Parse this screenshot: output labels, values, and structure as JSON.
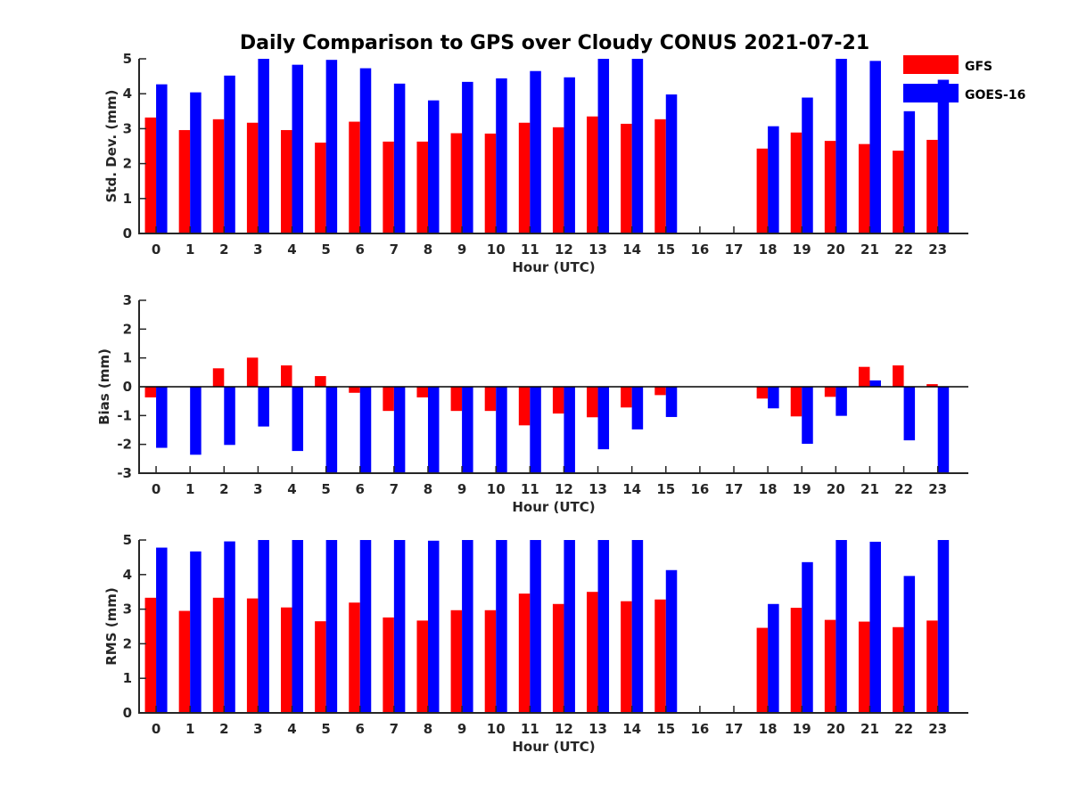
{
  "title": "Daily Comparison to GPS over Cloudy CONUS 2021-07-21",
  "colors": {
    "GFS": "#ff0000",
    "GOES-16": "#0000ff",
    "axis": "#262626"
  },
  "legend": {
    "placement": "top-right",
    "entries": [
      "GFS",
      "GOES-16"
    ]
  },
  "chart_data": [
    {
      "type": "bar",
      "xlabel": "Hour (UTC)",
      "ylabel": "Std. Dev. (mm)",
      "ylim": [
        0,
        5
      ],
      "yticks": [
        "0",
        "1",
        "2",
        "3",
        "4",
        "5"
      ],
      "categories": [
        "0",
        "1",
        "2",
        "3",
        "4",
        "5",
        "6",
        "7",
        "8",
        "9",
        "10",
        "11",
        "12",
        "13",
        "14",
        "15",
        "16",
        "17",
        "18",
        "19",
        "20",
        "21",
        "22",
        "23"
      ],
      "series": [
        {
          "name": "GFS",
          "values": [
            3.32,
            2.96,
            3.27,
            3.17,
            2.96,
            2.6,
            3.2,
            2.63,
            2.63,
            2.87,
            2.86,
            3.17,
            3.04,
            3.35,
            3.14,
            3.27,
            null,
            null,
            2.43,
            2.89,
            2.65,
            2.56,
            2.37,
            2.68
          ]
        },
        {
          "name": "GOES-16",
          "values": [
            4.27,
            4.04,
            4.52,
            5.0,
            4.83,
            4.97,
            4.73,
            4.29,
            3.81,
            4.34,
            4.44,
            4.65,
            4.47,
            5.0,
            5.0,
            3.98,
            null,
            null,
            3.07,
            3.89,
            5.0,
            4.94,
            3.5,
            4.4
          ]
        }
      ]
    },
    {
      "type": "bar",
      "xlabel": "Hour (UTC)",
      "ylabel": "Bias (mm)",
      "ylim": [
        -3,
        3
      ],
      "yticks": [
        "-3",
        "-2",
        "-1",
        "0",
        "1",
        "2",
        "3"
      ],
      "categories": [
        "0",
        "1",
        "2",
        "3",
        "4",
        "5",
        "6",
        "7",
        "8",
        "9",
        "10",
        "11",
        "12",
        "13",
        "14",
        "15",
        "16",
        "17",
        "18",
        "19",
        "20",
        "21",
        "22",
        "23"
      ],
      "series": [
        {
          "name": "GFS",
          "values": [
            -0.37,
            0.0,
            0.64,
            1.01,
            0.74,
            0.37,
            -0.21,
            -0.84,
            -0.37,
            -0.84,
            -0.84,
            -1.34,
            -0.93,
            -1.06,
            -0.72,
            -0.29,
            null,
            null,
            -0.41,
            -1.03,
            -0.35,
            0.69,
            0.74,
            0.09
          ]
        },
        {
          "name": "GOES-16",
          "values": [
            -2.12,
            -2.36,
            -2.02,
            -1.38,
            -2.23,
            -3.0,
            -3.0,
            -3.0,
            -3.0,
            -3.0,
            -3.0,
            -3.0,
            -3.0,
            -2.17,
            -1.48,
            -1.05,
            null,
            null,
            -0.75,
            -1.98,
            -1.01,
            0.22,
            -1.86,
            -3.0
          ]
        }
      ]
    },
    {
      "type": "bar",
      "xlabel": "Hour (UTC)",
      "ylabel": "RMS (mm)",
      "ylim": [
        0,
        5
      ],
      "yticks": [
        "0",
        "1",
        "2",
        "3",
        "4",
        "5"
      ],
      "categories": [
        "0",
        "1",
        "2",
        "3",
        "4",
        "5",
        "6",
        "7",
        "8",
        "9",
        "10",
        "11",
        "12",
        "13",
        "14",
        "15",
        "16",
        "17",
        "18",
        "19",
        "20",
        "21",
        "22",
        "23"
      ],
      "series": [
        {
          "name": "GFS",
          "values": [
            3.33,
            2.95,
            3.33,
            3.31,
            3.05,
            2.65,
            3.19,
            2.76,
            2.67,
            2.97,
            2.97,
            3.45,
            3.15,
            3.5,
            3.23,
            3.28,
            null,
            null,
            2.46,
            3.04,
            2.69,
            2.64,
            2.48,
            2.67
          ]
        },
        {
          "name": "GOES-16",
          "values": [
            4.78,
            4.67,
            4.96,
            5.0,
            5.0,
            5.0,
            5.0,
            5.0,
            4.98,
            5.0,
            5.0,
            5.0,
            5.0,
            5.0,
            5.0,
            4.13,
            null,
            null,
            3.15,
            4.36,
            5.0,
            4.95,
            3.96,
            5.0
          ]
        }
      ]
    }
  ]
}
